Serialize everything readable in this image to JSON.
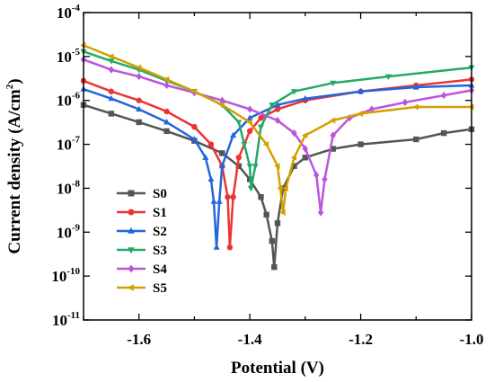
{
  "chart_data": {
    "type": "line",
    "xlabel": "Potential (V)",
    "ylabel_parts": {
      "pre": "Current density (A/cm",
      "sup": "2",
      "post": ")"
    },
    "xlim": [
      -1.7,
      -1.0
    ],
    "ylim_exp": [
      -11,
      -4
    ],
    "y_scale": "log",
    "x_ticks": [
      {
        "value": -1.6,
        "label": "-1.6"
      },
      {
        "value": -1.4,
        "label": "-1.4"
      },
      {
        "value": -1.2,
        "label": "-1.2"
      },
      {
        "value": -1.0,
        "label": "-1.0"
      }
    ],
    "y_ticks": [
      {
        "exp": -11,
        "base": "10",
        "sup": "-11"
      },
      {
        "exp": -10,
        "base": "10",
        "sup": "-10"
      },
      {
        "exp": -9,
        "base": "10",
        "sup": "-9"
      },
      {
        "exp": -8,
        "base": "10",
        "sup": "-8"
      },
      {
        "exp": -7,
        "base": "10",
        "sup": "-7"
      },
      {
        "exp": -6,
        "base": "10",
        "sup": "-6"
      },
      {
        "exp": -5,
        "base": "10",
        "sup": "-5"
      },
      {
        "exp": -4,
        "base": "10",
        "sup": "-4"
      }
    ],
    "legend_position": "center-left",
    "grid": false,
    "series": [
      {
        "name": "S0",
        "color": "#555555",
        "marker": "square",
        "points": [
          [
            -1.7,
            7.9e-07
          ],
          [
            -1.65,
            5e-07
          ],
          [
            -1.6,
            3.2e-07
          ],
          [
            -1.55,
            2e-07
          ],
          [
            -1.5,
            1.2e-07
          ],
          [
            -1.45,
            6.3e-08
          ],
          [
            -1.42,
            3.2e-08
          ],
          [
            -1.4,
            1.6e-08
          ],
          [
            -1.38,
            6.3e-09
          ],
          [
            -1.37,
            2.5e-09
          ],
          [
            -1.36,
            6.3e-10
          ],
          [
            -1.356,
            1.6e-10
          ],
          [
            -1.35,
            1.6e-09
          ],
          [
            -1.34,
            1e-08
          ],
          [
            -1.32,
            3.2e-08
          ],
          [
            -1.3,
            5e-08
          ],
          [
            -1.25,
            7.9e-08
          ],
          [
            -1.2,
            1e-07
          ],
          [
            -1.1,
            1.3e-07
          ],
          [
            -1.05,
            1.8e-07
          ],
          [
            -1.0,
            2.2e-07
          ]
        ]
      },
      {
        "name": "S1",
        "color": "#ee3333",
        "marker": "circle",
        "points": [
          [
            -1.7,
            2.8e-06
          ],
          [
            -1.65,
            1.6e-06
          ],
          [
            -1.6,
            1e-06
          ],
          [
            -1.55,
            5.6e-07
          ],
          [
            -1.5,
            2.5e-07
          ],
          [
            -1.47,
            1e-07
          ],
          [
            -1.45,
            3.2e-08
          ],
          [
            -1.44,
            6.3e-09
          ],
          [
            -1.436,
            4.5e-10
          ],
          [
            -1.43,
            6.3e-09
          ],
          [
            -1.42,
            5e-08
          ],
          [
            -1.4,
            2e-07
          ],
          [
            -1.38,
            4e-07
          ],
          [
            -1.35,
            6.3e-07
          ],
          [
            -1.3,
            1e-06
          ],
          [
            -1.2,
            1.6e-06
          ],
          [
            -1.1,
            2.2e-06
          ],
          [
            -1.0,
            3e-06
          ]
        ]
      },
      {
        "name": "S2",
        "color": "#2266dd",
        "marker": "triangle-up",
        "points": [
          [
            -1.7,
            1.8e-06
          ],
          [
            -1.65,
            1.1e-06
          ],
          [
            -1.6,
            6.3e-07
          ],
          [
            -1.55,
            3.2e-07
          ],
          [
            -1.5,
            1.3e-07
          ],
          [
            -1.48,
            5e-08
          ],
          [
            -1.47,
            1.6e-08
          ],
          [
            -1.465,
            5e-09
          ],
          [
            -1.46,
            4.5e-10
          ],
          [
            -1.455,
            5e-09
          ],
          [
            -1.45,
            3.2e-08
          ],
          [
            -1.43,
            1.6e-07
          ],
          [
            -1.4,
            4e-07
          ],
          [
            -1.35,
            7.9e-07
          ],
          [
            -1.3,
            1.1e-06
          ],
          [
            -1.2,
            1.6e-06
          ],
          [
            -1.1,
            2e-06
          ],
          [
            -1.0,
            2.2e-06
          ]
        ]
      },
      {
        "name": "S3",
        "color": "#22aa66",
        "marker": "triangle-down",
        "points": [
          [
            -1.7,
            1.3e-05
          ],
          [
            -1.65,
            7.9e-06
          ],
          [
            -1.6,
            5e-06
          ],
          [
            -1.55,
            2.8e-06
          ],
          [
            -1.5,
            1.6e-06
          ],
          [
            -1.45,
            7.9e-07
          ],
          [
            -1.42,
            3.2e-07
          ],
          [
            -1.41,
            1e-07
          ],
          [
            -1.4,
            3.2e-08
          ],
          [
            -1.398,
            1e-08
          ],
          [
            -1.39,
            3.2e-08
          ],
          [
            -1.38,
            2.5e-07
          ],
          [
            -1.36,
            7.9e-07
          ],
          [
            -1.32,
            1.6e-06
          ],
          [
            -1.25,
            2.5e-06
          ],
          [
            -1.15,
            3.5e-06
          ],
          [
            -1.0,
            5.6e-06
          ]
        ]
      },
      {
        "name": "S4",
        "color": "#bb55dd",
        "marker": "diamond",
        "points": [
          [
            -1.7,
            8.5e-06
          ],
          [
            -1.65,
            5e-06
          ],
          [
            -1.6,
            3.5e-06
          ],
          [
            -1.55,
            2.2e-06
          ],
          [
            -1.5,
            1.5e-06
          ],
          [
            -1.45,
            1e-06
          ],
          [
            -1.4,
            6.3e-07
          ],
          [
            -1.35,
            3.5e-07
          ],
          [
            -1.32,
            1.8e-07
          ],
          [
            -1.3,
            7.9e-08
          ],
          [
            -1.28,
            2e-08
          ],
          [
            -1.272,
            2.8e-09
          ],
          [
            -1.265,
            1.6e-08
          ],
          [
            -1.25,
            1.6e-07
          ],
          [
            -1.22,
            4e-07
          ],
          [
            -1.18,
            6.3e-07
          ],
          [
            -1.12,
            9e-07
          ],
          [
            -1.05,
            1.3e-06
          ],
          [
            -1.0,
            1.7e-06
          ]
        ]
      },
      {
        "name": "S5",
        "color": "#d4a000",
        "marker": "triangle-left",
        "points": [
          [
            -1.7,
            1.8e-05
          ],
          [
            -1.65,
            1e-05
          ],
          [
            -1.6,
            5.6e-06
          ],
          [
            -1.55,
            3e-06
          ],
          [
            -1.5,
            1.6e-06
          ],
          [
            -1.45,
            7.9e-07
          ],
          [
            -1.4,
            3.2e-07
          ],
          [
            -1.37,
            1e-07
          ],
          [
            -1.35,
            3.2e-08
          ],
          [
            -1.345,
            1e-08
          ],
          [
            -1.34,
            2.8e-09
          ],
          [
            -1.335,
            1e-08
          ],
          [
            -1.32,
            5e-08
          ],
          [
            -1.3,
            1.6e-07
          ],
          [
            -1.25,
            3.5e-07
          ],
          [
            -1.2,
            5e-07
          ],
          [
            -1.1,
            7.1e-07
          ],
          [
            -1.0,
            7.1e-07
          ]
        ]
      }
    ]
  }
}
